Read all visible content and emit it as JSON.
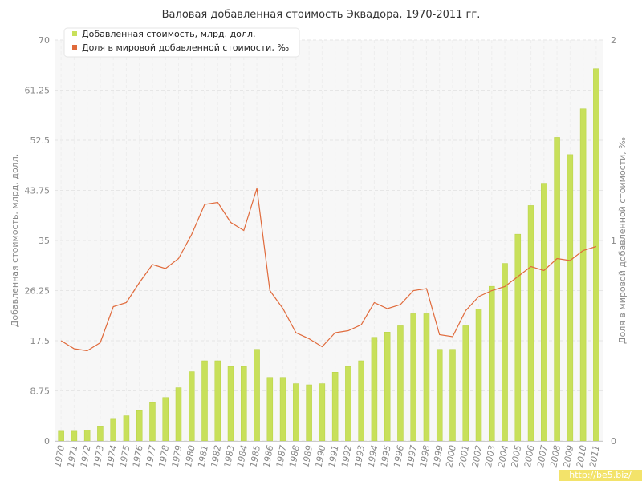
{
  "chart_data": {
    "type": "bar+line",
    "title": "Валовая добавленная стоимость Эквадора, 1970-2011 гг.",
    "categories": [
      "1970",
      "1971",
      "1972",
      "1973",
      "1974",
      "1975",
      "1976",
      "1977",
      "1978",
      "1979",
      "1980",
      "1981",
      "1982",
      "1983",
      "1984",
      "1985",
      "1986",
      "1987",
      "1988",
      "1989",
      "1990",
      "1991",
      "1992",
      "1993",
      "1994",
      "1995",
      "1996",
      "1997",
      "1998",
      "1999",
      "2000",
      "2001",
      "2002",
      "2003",
      "2004",
      "2005",
      "2006",
      "2007",
      "2008",
      "2009",
      "2010",
      "2011"
    ],
    "ylabel_left": "Добавленная стоимость, млрд. долл.",
    "ylabel_right": "Доля в мировой добавленной стоимости, ‰",
    "ylim_left": [
      0,
      70
    ],
    "ylim_right": [
      0,
      2
    ],
    "left_ticks": [
      "0",
      "8.75",
      "17.5",
      "26.25",
      "35",
      "43.75",
      "52.5",
      "61.25",
      "70"
    ],
    "right_ticks": [
      "0",
      "1",
      "2"
    ],
    "grid": true,
    "legend_position": "top-left",
    "series": [
      {
        "name": "Добавленная стоимость, млрд. долл.",
        "kind": "bar",
        "axis": "left",
        "color": "#c8e05a",
        "values": [
          1.7,
          1.7,
          1.9,
          2.5,
          3.8,
          4.4,
          5.3,
          6.7,
          7.6,
          9.3,
          12.1,
          14.0,
          14.0,
          13.0,
          13.0,
          16.0,
          11.1,
          11.1,
          10.0,
          9.8,
          10.0,
          12.0,
          13.0,
          14.0,
          18.1,
          19.0,
          20.1,
          22.2,
          22.2,
          16.0,
          16.0,
          20.1,
          23.0,
          27.0,
          31.0,
          36.1,
          41.1,
          45.0,
          53.0,
          50.0,
          58.0,
          65.0
        ]
      },
      {
        "name": "Доля в мировой добавленной стоимости, ‰",
        "kind": "line",
        "axis": "right",
        "color": "#e06a3b",
        "values": [
          0.5,
          0.46,
          0.45,
          0.49,
          0.67,
          0.69,
          0.79,
          0.88,
          0.86,
          0.91,
          1.03,
          1.18,
          1.19,
          1.09,
          1.05,
          1.26,
          0.75,
          0.66,
          0.54,
          0.51,
          0.47,
          0.54,
          0.55,
          0.58,
          0.69,
          0.66,
          0.68,
          0.75,
          0.76,
          0.53,
          0.52,
          0.65,
          0.72,
          0.75,
          0.77,
          0.82,
          0.87,
          0.85,
          0.91,
          0.9,
          0.95,
          0.97
        ]
      }
    ]
  },
  "watermark": "http://be5.biz/"
}
